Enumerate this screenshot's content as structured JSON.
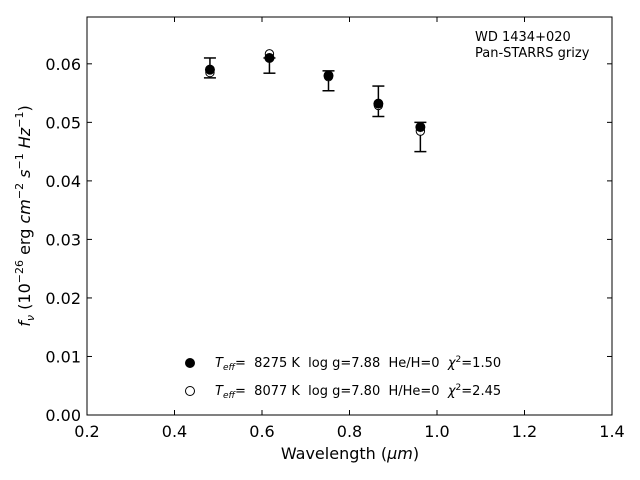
{
  "chart_data": {
    "type": "scatter",
    "title": "",
    "annotation": {
      "line1": "WD 1434+020",
      "line2": "Pan-STARRS grizy"
    },
    "xlabel_text": "Wavelength (",
    "xlabel_unit": "μm",
    "xlabel_close": ")",
    "ylabel_parts": {
      "f": "f",
      "nu": "ν",
      "open": " (10",
      "exp1": "−26",
      "erg": " erg ",
      "cm": "cm",
      "exp2": "−2",
      "s": " s",
      "exp3": "−1",
      "hz": " Hz",
      "exp4": "−1",
      "close": ")"
    },
    "xlim": [
      0.2,
      1.4
    ],
    "ylim": [
      0.0,
      0.068
    ],
    "xticks": [
      0.2,
      0.4,
      0.6,
      0.8,
      1.0,
      1.2,
      1.4
    ],
    "xtick_labels": [
      "0.2",
      "0.4",
      "0.6",
      "0.8",
      "1.0",
      "1.2",
      "1.4"
    ],
    "yticks": [
      0.0,
      0.01,
      0.02,
      0.03,
      0.04,
      0.05,
      0.06
    ],
    "ytick_labels": [
      "0.00",
      "0.01",
      "0.02",
      "0.03",
      "0.04",
      "0.05",
      "0.06"
    ],
    "observed": {
      "x": [
        0.481,
        0.617,
        0.752,
        0.866,
        0.962
      ],
      "y": [
        0.0593,
        0.0597,
        0.0571,
        0.0536,
        0.0475
      ],
      "yerr": [
        0.0017,
        0.0013,
        0.0017,
        0.0026,
        0.0025
      ]
    },
    "series": [
      {
        "marker": "filled",
        "x": [
          0.481,
          0.617,
          0.752,
          0.866,
          0.962
        ],
        "y": [
          0.059,
          0.061,
          0.058,
          0.0532,
          0.0492
        ]
      },
      {
        "marker": "open",
        "x": [
          0.481,
          0.617,
          0.752,
          0.866,
          0.962
        ],
        "y": [
          0.0585,
          0.0617,
          0.0578,
          0.0529,
          0.0485
        ]
      }
    ],
    "legend": {
      "placement": "lower-center",
      "entries": [
        {
          "marker": "filled",
          "T": "T",
          "eff": "eff",
          "eq": "=  ",
          "rest": "8275 K  log g=7.88  He/H=0  ",
          "chi": "χ",
          "chi_exp": "2",
          "chi_val": "=1.50"
        },
        {
          "marker": "open",
          "T": "T",
          "eff": "eff",
          "eq": "=  ",
          "rest": "8077 K  log g=7.80  H/He=0  ",
          "chi": "χ",
          "chi_exp": "2",
          "chi_val": "=2.45"
        }
      ]
    },
    "grid": false
  }
}
